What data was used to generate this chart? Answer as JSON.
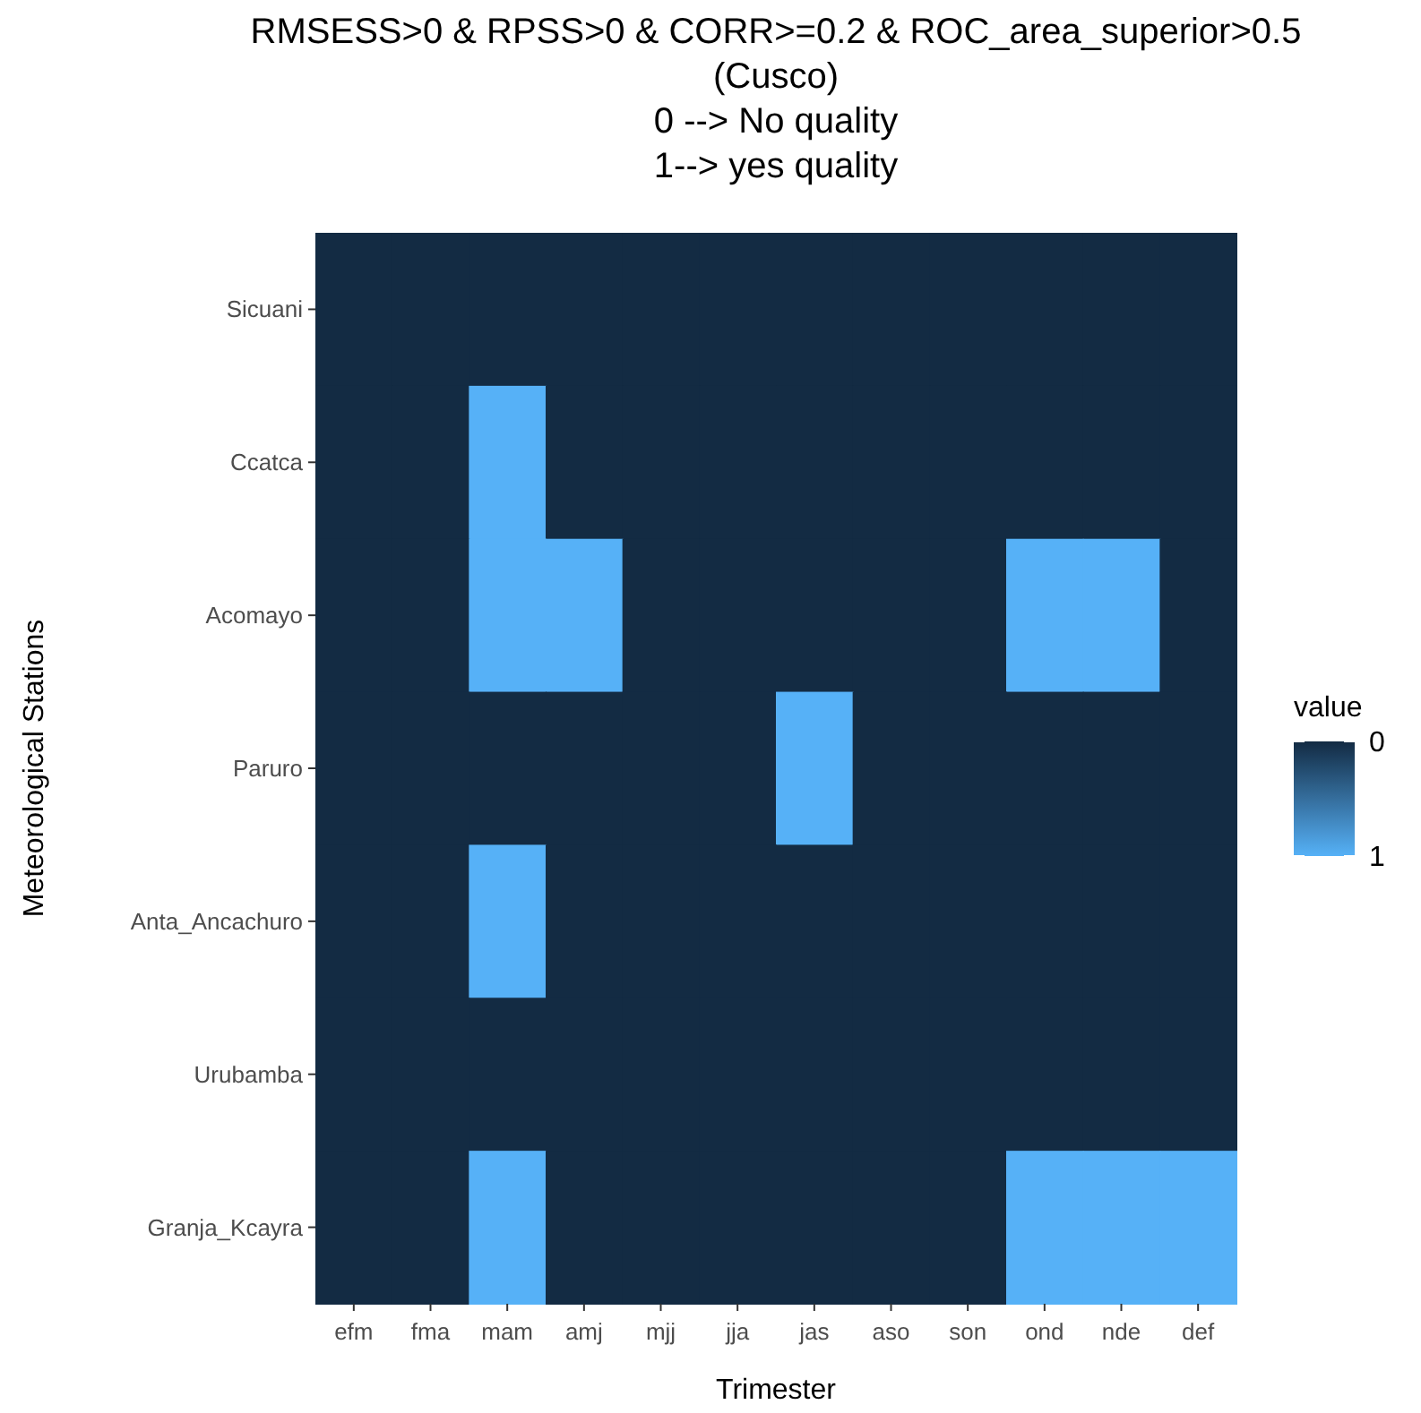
{
  "chart_data": {
    "type": "heatmap",
    "title": "RMSESS>0 & RPSS>0 & CORR>=0.2 & ROC_area_superior>0.5\n(Cusco)\n0 --> No quality\n1--> yes quality",
    "xlabel": "Trimester",
    "ylabel": "Meteorological Stations",
    "clabel": "value",
    "categories": [
      "efm",
      "fma",
      "mam",
      "amj",
      "mjj",
      "jja",
      "jas",
      "aso",
      "son",
      "ond",
      "nde",
      "def"
    ],
    "y_categories": [
      "Sicuani",
      "Ccatca",
      "Acomayo",
      "Paruro",
      "Anta_Ancachuro",
      "Urubamba",
      "Granja_Kcayra"
    ],
    "cells": [
      [
        0,
        0,
        0,
        0,
        0,
        0,
        0,
        0,
        0,
        0,
        0,
        0
      ],
      [
        0,
        0,
        1,
        0,
        0,
        0,
        0,
        0,
        0,
        0,
        0,
        0
      ],
      [
        0,
        0,
        1,
        1,
        0,
        0,
        0,
        0,
        0,
        1,
        1,
        0
      ],
      [
        0,
        0,
        0,
        0,
        0,
        0,
        1,
        0,
        0,
        0,
        0,
        0
      ],
      [
        0,
        0,
        1,
        0,
        0,
        0,
        0,
        0,
        0,
        0,
        0,
        0
      ],
      [
        0,
        0,
        0,
        0,
        0,
        0,
        0,
        0,
        0,
        0,
        0,
        0
      ],
      [
        0,
        0,
        1,
        0,
        0,
        0,
        0,
        0,
        0,
        1,
        1,
        1
      ]
    ],
    "clim": [
      0,
      1
    ],
    "cticks": [
      0,
      1
    ],
    "colors": [
      "#132b43",
      "#56b1f7"
    ]
  }
}
